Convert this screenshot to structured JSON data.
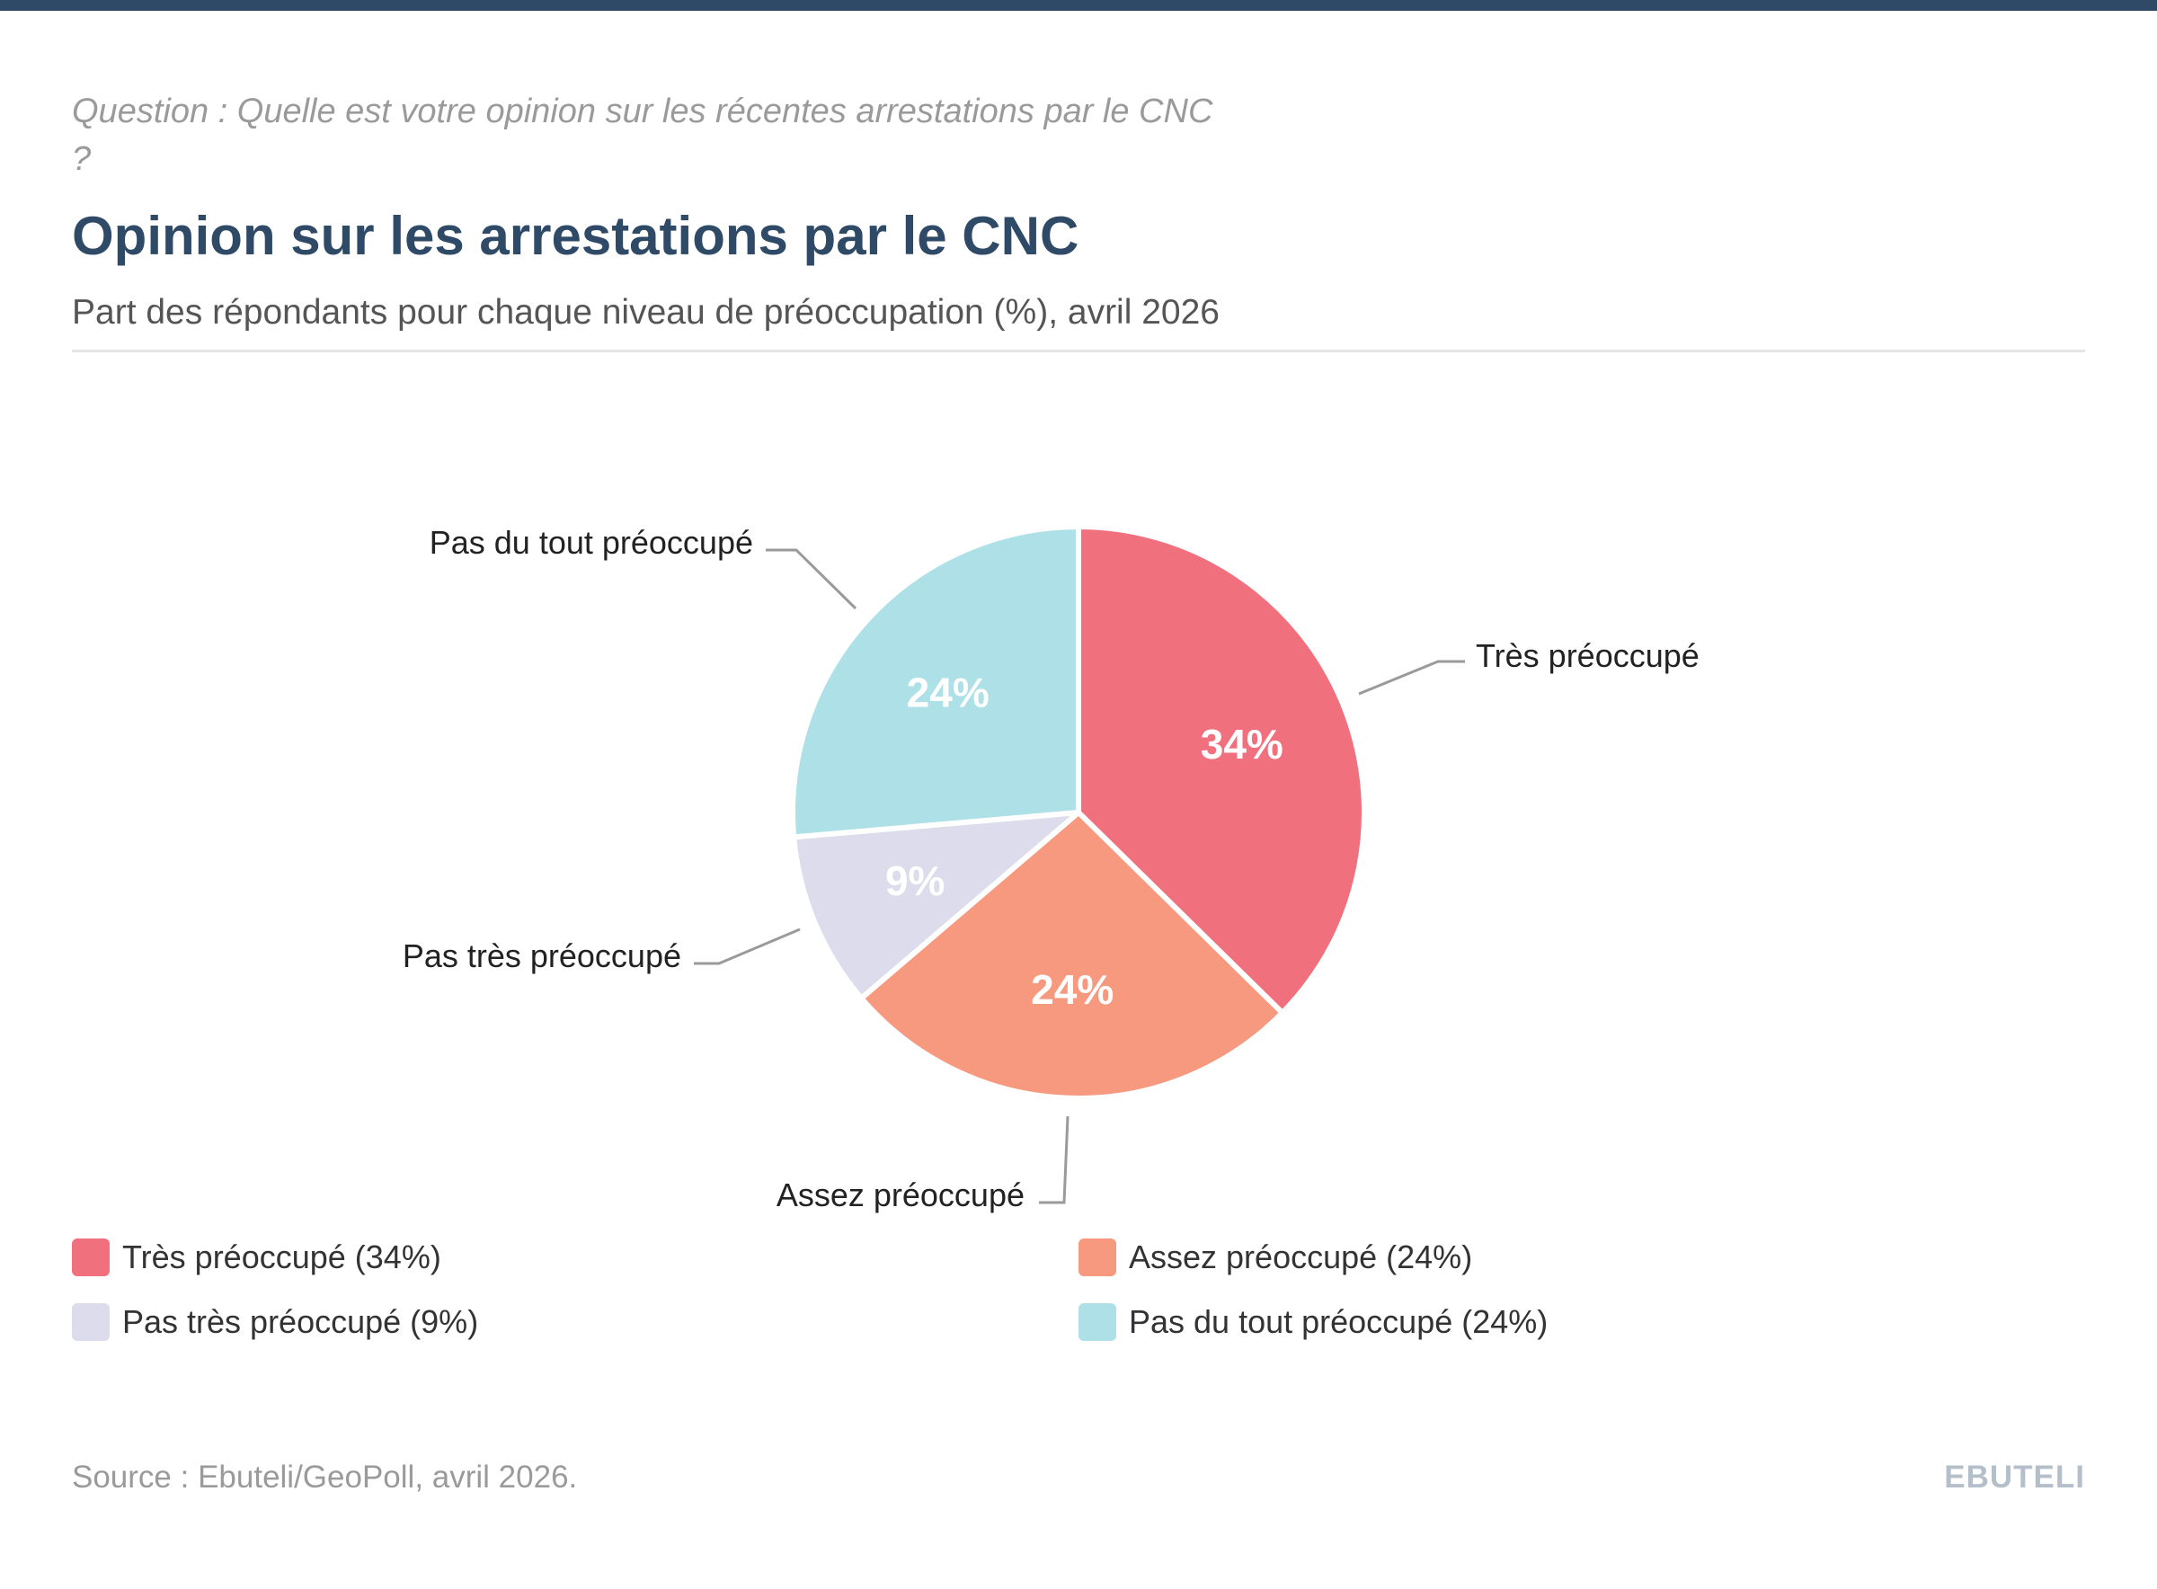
{
  "header": {
    "question": "Question : Quelle est votre opinion sur les récentes arrestations par le CNC ?",
    "title": "Opinion sur les arrestations par le CNC",
    "subtitle": "Part des répondants pour chaque niveau de préoccupation (%), avril 2026"
  },
  "chart_data": {
    "type": "pie",
    "title": "Opinion sur les arrestations par le CNC",
    "subtitle": "Part des répondants pour chaque niveau de préoccupation (%), avril 2026",
    "unit": "%",
    "start": "12 o'clock, clockwise",
    "slices": [
      {
        "label": "Très préoccupé",
        "value": 34,
        "value_label": "34%",
        "color": "#f0717d"
      },
      {
        "label": "Assez préoccupé",
        "value": 24,
        "value_label": "24%",
        "color": "#f6997f"
      },
      {
        "label": "Pas très préoccupé",
        "value": 9,
        "value_label": "9%",
        "color": "#dcdcec"
      },
      {
        "label": "Pas du tout préoccupé",
        "value": 24,
        "value_label": "24%",
        "color": "#aee0e8"
      }
    ]
  },
  "legend": {
    "items": [
      {
        "label": "Très préoccupé (34%)",
        "color": "#f0717d"
      },
      {
        "label": "Assez préoccupé (24%)",
        "color": "#f6997f"
      },
      {
        "label": "Pas très préoccupé (9%)",
        "color": "#dcdcec"
      },
      {
        "label": "Pas du tout préoccupé (24%)",
        "color": "#aee0e8"
      }
    ]
  },
  "footer": {
    "source": "Source : Ebuteli/GeoPoll, avril 2026.",
    "brand": "EBUTELI"
  }
}
